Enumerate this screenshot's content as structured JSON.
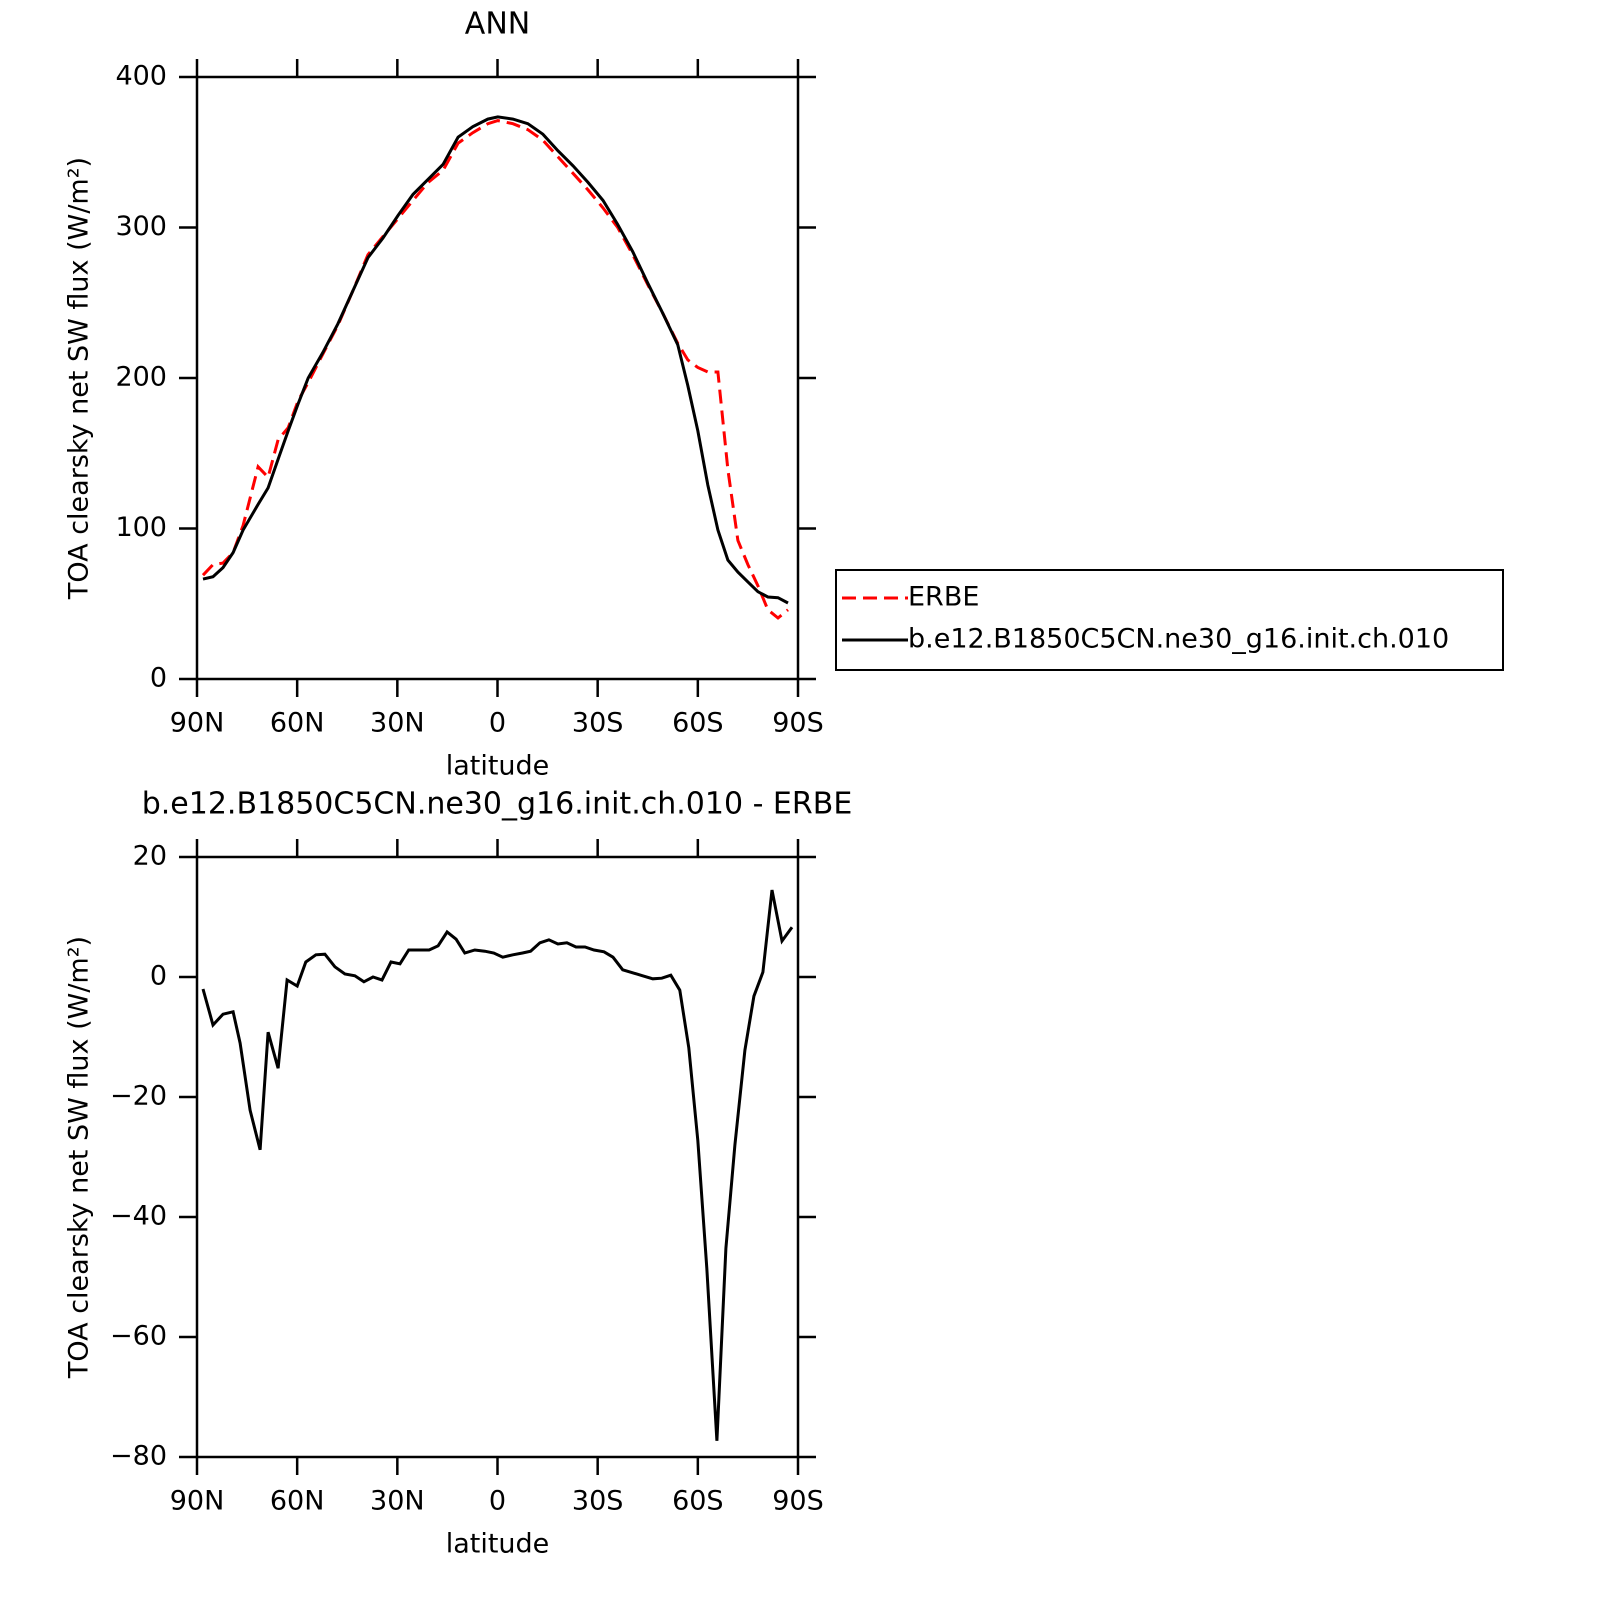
{
  "chart_data": [
    {
      "type": "line",
      "title": "ANN",
      "xlabel": "latitude",
      "ylabel": "TOA clearsky net SW flux (W/m²)",
      "x": [
        88.2,
        85.2,
        82.2,
        79.2,
        76.2,
        71.7,
        68.7,
        65.7,
        62.7,
        59.7,
        56.7,
        52.3,
        47.8,
        43.3,
        38.8,
        34.3,
        29.8,
        25.3,
        20.8,
        16.3,
        11.8,
        7.4,
        2.9,
        -0.1,
        -4.6,
        -9.1,
        -13.6,
        -18.1,
        -22.6,
        -27.1,
        -31.6,
        -36.0,
        -40.5,
        -45.0,
        -49.5,
        -54.0,
        -57.0,
        -60.0,
        -63.0,
        -66.0,
        -69.0,
        -72.0,
        -75.0,
        -78.0,
        -81.0,
        -84.0,
        -87.0
      ],
      "series": [
        {
          "name": "ERBE",
          "color": "#ff0000",
          "dashed": true,
          "values": [
            69,
            76,
            77,
            84,
            102,
            141,
            134,
            159,
            167,
            185,
            197,
            216,
            235,
            258,
            282,
            294,
            306,
            318,
            330,
            338,
            356,
            363,
            369,
            371,
            369,
            365,
            358,
            347,
            336,
            325,
            313,
            300,
            282,
            262,
            243,
            223,
            212,
            207,
            204,
            204,
            139,
            92,
            76,
            62,
            46,
            40.5,
            46
          ]
        },
        {
          "name": "b.e12.B1850C5CN.ne30_g16.init.ch.010",
          "color": "#000000",
          "dashed": false,
          "values": [
            66.4,
            68,
            74,
            84,
            99,
            116,
            127,
            146,
            165,
            183,
            200,
            217,
            236,
            258,
            280,
            293,
            308,
            322,
            332,
            342,
            360,
            367,
            372,
            373.5,
            372,
            369,
            362,
            351,
            341,
            330,
            318,
            302,
            284,
            263,
            243,
            222,
            195,
            165,
            129,
            99,
            79,
            71,
            64.5,
            58,
            54.5,
            54,
            50.5
          ]
        }
      ],
      "xlim": [
        90,
        -90
      ],
      "xticks": [
        {
          "value": 90,
          "label": "90N"
        },
        {
          "value": 60,
          "label": "60N"
        },
        {
          "value": 30,
          "label": "30N"
        },
        0,
        {
          "value": -30,
          "label": "30S"
        },
        {
          "value": -60,
          "label": "60S"
        },
        {
          "value": -90,
          "label": "90S"
        }
      ],
      "ylim": [
        0,
        400
      ],
      "yticks": [
        0,
        100,
        200,
        300,
        400
      ],
      "legend": "right"
    },
    {
      "type": "line",
      "title": "b.e12.B1850C5CN.ne30_g16.init.ch.010 - ERBE",
      "xlabel": "latitude",
      "ylabel": "TOA clearsky net SW flux (W/m²)",
      "x": [
        88.2,
        85.2,
        82.2,
        79.2,
        77.1,
        74.1,
        71.1,
        68.7,
        65.7,
        63.0,
        60.0,
        57.4,
        54.4,
        51.7,
        48.7,
        45.7,
        42.7,
        40.0,
        37.3,
        34.6,
        31.9,
        29.2,
        26.6,
        23.2,
        20.5,
        17.8,
        15.1,
        12.4,
        9.8,
        6.8,
        3.8,
        1.1,
        -1.6,
        -4.6,
        -7.5,
        -9.9,
        -12.7,
        -15.4,
        -18.1,
        -20.8,
        -23.5,
        -26.2,
        -28.9,
        -31.9,
        -34.6,
        -37.5,
        -40.5,
        -43.5,
        -46.5,
        -49.2,
        -51.9,
        -54.6,
        -57.3,
        -60.0,
        -62.7,
        -65.7,
        -68.4,
        -71.1,
        -74.1,
        -76.8,
        -79.5,
        -82.2,
        -85.2,
        -88.2
      ],
      "series": [
        {
          "color": "#000000",
          "dashed": false,
          "values": [
            -2,
            -8,
            -6.2,
            -5.8,
            -11,
            -22.2,
            -28.8,
            -9.2,
            -15.2,
            -0.5,
            -1.5,
            2.5,
            3.7,
            3.8,
            1.7,
            0.5,
            0.2,
            -0.8,
            0,
            -0.5,
            2.5,
            2.2,
            4.5,
            4.5,
            4.5,
            5.2,
            7.5,
            6.3,
            4,
            4.5,
            4.3,
            4,
            3.3,
            3.7,
            4,
            4.3,
            5.7,
            6.2,
            5.5,
            5.7,
            5,
            5,
            4.5,
            4.2,
            3.3,
            1.2,
            0.7,
            0.2,
            -0.3,
            -0.2,
            0.3,
            -2.2,
            -11.8,
            -27.2,
            -48.5,
            -77.3,
            -45.2,
            -28,
            -12.2,
            -3.2,
            0.8,
            14.5,
            6,
            8.3
          ]
        }
      ],
      "xlim": [
        90,
        -90
      ],
      "xticks": [
        {
          "value": 90,
          "label": "90N"
        },
        {
          "value": 60,
          "label": "60N"
        },
        {
          "value": 30,
          "label": "30N"
        },
        0,
        {
          "value": -30,
          "label": "30S"
        },
        {
          "value": -60,
          "label": "60S"
        },
        {
          "value": -90,
          "label": "90S"
        }
      ],
      "ylim": [
        -80,
        20
      ],
      "yticks": [
        {
          "value": -80,
          "label": "−80"
        },
        {
          "value": -60,
          "label": "−60"
        },
        {
          "value": -40,
          "label": "−40"
        },
        {
          "value": -20,
          "label": "−20"
        },
        0,
        20
      ]
    }
  ]
}
